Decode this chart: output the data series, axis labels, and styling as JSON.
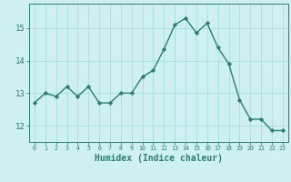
{
  "x": [
    0,
    1,
    2,
    3,
    4,
    5,
    6,
    7,
    8,
    9,
    10,
    11,
    12,
    13,
    14,
    15,
    16,
    17,
    18,
    19,
    20,
    21,
    22,
    23
  ],
  "y": [
    12.7,
    13.0,
    12.9,
    13.2,
    12.9,
    13.2,
    12.7,
    12.7,
    13.0,
    13.0,
    13.5,
    13.7,
    14.35,
    15.1,
    15.3,
    14.85,
    15.15,
    14.4,
    13.9,
    12.8,
    12.2,
    12.2,
    11.85,
    11.85
  ],
  "line_color": "#2e7d6e",
  "marker": "D",
  "markersize": 2.2,
  "linewidth": 1.0,
  "bg_color": "#cef0f0",
  "grid_color": "#aadddd",
  "axis_color": "#2e7d6e",
  "tick_color": "#2e7d6e",
  "xlabel": "Humidex (Indice chaleur)",
  "xlabel_fontsize": 7,
  "ytick_labels": [
    "12",
    "13",
    "14",
    "15"
  ],
  "ytick_values": [
    12,
    13,
    14,
    15
  ],
  "xlim": [
    -0.5,
    23.5
  ],
  "ylim": [
    11.5,
    15.75
  ]
}
